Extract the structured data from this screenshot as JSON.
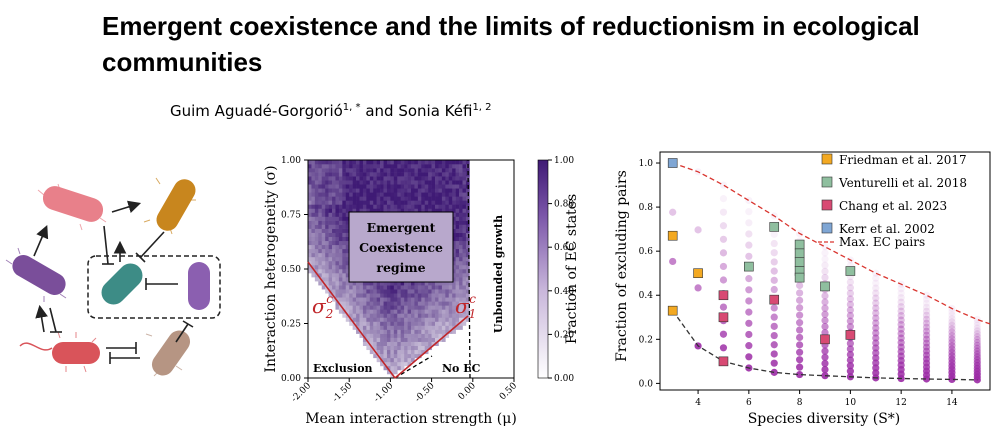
{
  "paper": {
    "title": "Emergent coexistence and the limits of reductionism in ecological communities",
    "authors": [
      {
        "name": "Guim Aguadé-Gorgorió",
        "aff": "1, *"
      },
      {
        "name": "Sonia Kéfi",
        "aff": "1, 2"
      }
    ],
    "author_conj": "and"
  },
  "colors": {
    "pink_bug": "#e8808a",
    "purple_bug": "#7a4e9a",
    "orange_bug": "#c8861e",
    "teal_bug": "#3d8c86",
    "violet_bug": "#8b5fb0",
    "red_bug": "#d9545a",
    "tan_bug": "#b69583",
    "ec_max": "#3f1a75",
    "red_line": "#c0262a"
  },
  "chart_data": [
    {
      "type": "heatmap",
      "xlabel": "Mean interaction strength (μ)",
      "ylabel": "Interaction heterogeneity (σ)",
      "xlim": [
        -2.0,
        0.5
      ],
      "ylim": [
        0.0,
        1.0
      ],
      "xticks": [
        "-2.00",
        "-1.50",
        "-1.00",
        "-0.50",
        "0.00",
        "0.50"
      ],
      "yticks": [
        "0.00",
        "0.25",
        "0.50",
        "0.75",
        "1.00"
      ],
      "colorbar": {
        "label": "Fraction of EC states",
        "ticks": [
          "0.00",
          "0.20",
          "0.40",
          "0.60",
          "0.80",
          "1.00"
        ]
      },
      "annotations": {
        "box_line1": "Emergent",
        "box_line2": "Coexistence",
        "box_line3": "regime",
        "sigma2": "σ",
        "sigma2_sub": "2",
        "sigma2_sup": "c",
        "sigma1": "σ",
        "sigma1_sub": "1",
        "sigma1_sup": "c",
        "exclusion": "Exclusion",
        "no_ec": "No EC",
        "unbounded": "Unbounded growth"
      }
    },
    {
      "type": "scatter",
      "xlabel": "Species diversity (S*)",
      "ylabel": "Fraction of excluding pairs",
      "xlim": [
        2.5,
        15.5
      ],
      "ylim": [
        -0.03,
        1.05
      ],
      "xticks": [
        "4",
        "6",
        "8",
        "10",
        "12",
        "14"
      ],
      "yticks": [
        "0.0",
        "0.2",
        "0.4",
        "0.6",
        "0.8",
        "1.0"
      ],
      "max_ec_curve": [
        [
          3,
          1.0
        ],
        [
          4,
          0.96
        ],
        [
          5,
          0.9
        ],
        [
          6,
          0.83
        ],
        [
          7,
          0.76
        ],
        [
          8,
          0.68
        ],
        [
          9,
          0.62
        ],
        [
          10,
          0.56
        ],
        [
          11,
          0.5
        ],
        [
          12,
          0.45
        ],
        [
          13,
          0.4
        ],
        [
          14,
          0.34
        ],
        [
          15,
          0.29
        ],
        [
          15.5,
          0.27
        ]
      ],
      "min_curve": [
        [
          3,
          0.33
        ],
        [
          3.5,
          0.25
        ],
        [
          4,
          0.17
        ],
        [
          5,
          0.1
        ],
        [
          6,
          0.07
        ],
        [
          7,
          0.05
        ],
        [
          8,
          0.04
        ],
        [
          9,
          0.035
        ],
        [
          10,
          0.03
        ],
        [
          11,
          0.025
        ],
        [
          12,
          0.022
        ],
        [
          13,
          0.02
        ],
        [
          14,
          0.018
        ],
        [
          15,
          0.016
        ]
      ],
      "datasets": {
        "friedman": [
          [
            3,
            0.67
          ],
          [
            3,
            0.33
          ],
          [
            4,
            0.5
          ]
        ],
        "venturelli": [
          [
            6,
            0.53
          ],
          [
            7,
            0.71
          ],
          [
            8,
            0.63
          ],
          [
            8,
            0.59
          ],
          [
            8,
            0.55
          ],
          [
            8,
            0.51
          ],
          [
            8,
            0.48
          ],
          [
            9,
            0.44
          ],
          [
            10,
            0.51
          ]
        ],
        "chang": [
          [
            5,
            0.4
          ],
          [
            5,
            0.3
          ],
          [
            5,
            0.1
          ],
          [
            7,
            0.38
          ],
          [
            9,
            0.2
          ],
          [
            10,
            0.22
          ]
        ],
        "kerr": [
          [
            3,
            1.0
          ]
        ]
      },
      "legend": [
        {
          "label": "Friedman et al. 2017",
          "color": "#f3a922"
        },
        {
          "label": "Venturelli et al. 2018",
          "color": "#8fbf9f"
        },
        {
          "label": "Chang et al. 2023",
          "color": "#d84a73"
        },
        {
          "label": "Kerr et al. 2002",
          "color": "#7fa6d4"
        },
        {
          "label": "Max. EC pairs",
          "color": "#d9352f"
        }
      ]
    }
  ]
}
